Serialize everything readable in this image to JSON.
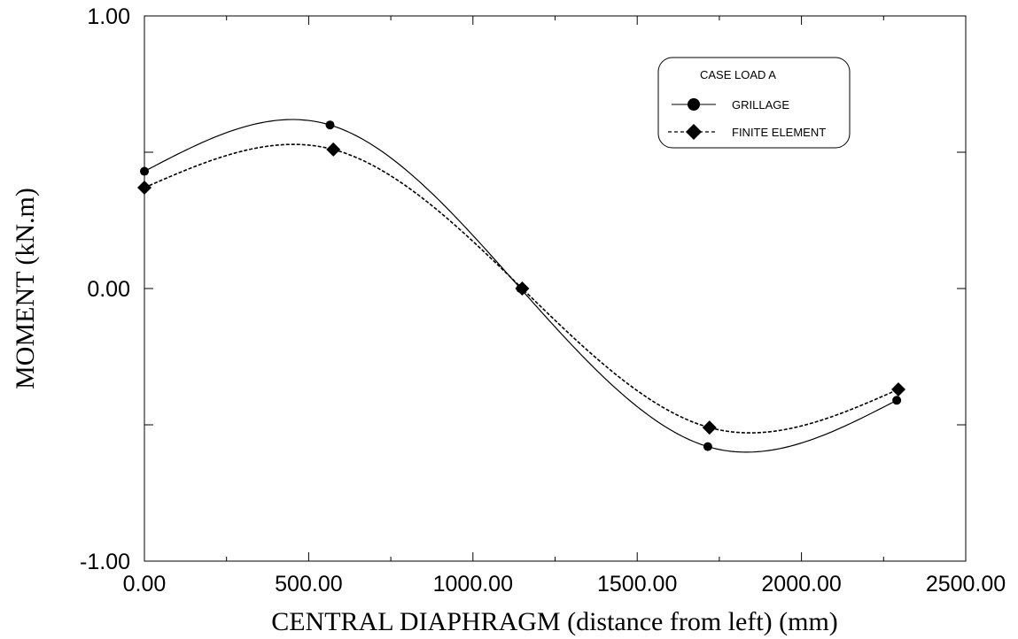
{
  "chart_data": {
    "type": "line",
    "xlabel": "CENTRAL DIAPHRAGM (distance from left) (mm)",
    "ylabel": "MOMENT (kN.m)",
    "xlim": [
      0,
      2500
    ],
    "ylim": [
      -1,
      1
    ],
    "x_ticks": [
      0,
      500,
      1000,
      1500,
      2000,
      2500
    ],
    "x_tick_labels": [
      "0.00",
      "500.00",
      "1000.00",
      "1500.00",
      "2000.00",
      "2500.00"
    ],
    "y_ticks": [
      -1,
      0,
      1
    ],
    "y_tick_labels": [
      "-1.00",
      "0.00",
      "1.00"
    ],
    "grid": false,
    "legend": {
      "title": "CASE LOAD A",
      "placement": "top-right"
    },
    "series": [
      {
        "name": "GRILLAGE",
        "marker": "circle",
        "line": "solid",
        "color": "#000000",
        "x": [
          0,
          565,
          1145,
          1715,
          2290
        ],
        "y": [
          0.43,
          0.6,
          0.0,
          -0.58,
          -0.41
        ]
      },
      {
        "name": "FINITE ELEMENT",
        "marker": "diamond",
        "line": "dashed",
        "color": "#000000",
        "x": [
          0,
          575,
          1150,
          1720,
          2295
        ],
        "y": [
          0.37,
          0.51,
          0.0,
          -0.51,
          -0.37
        ]
      }
    ]
  }
}
